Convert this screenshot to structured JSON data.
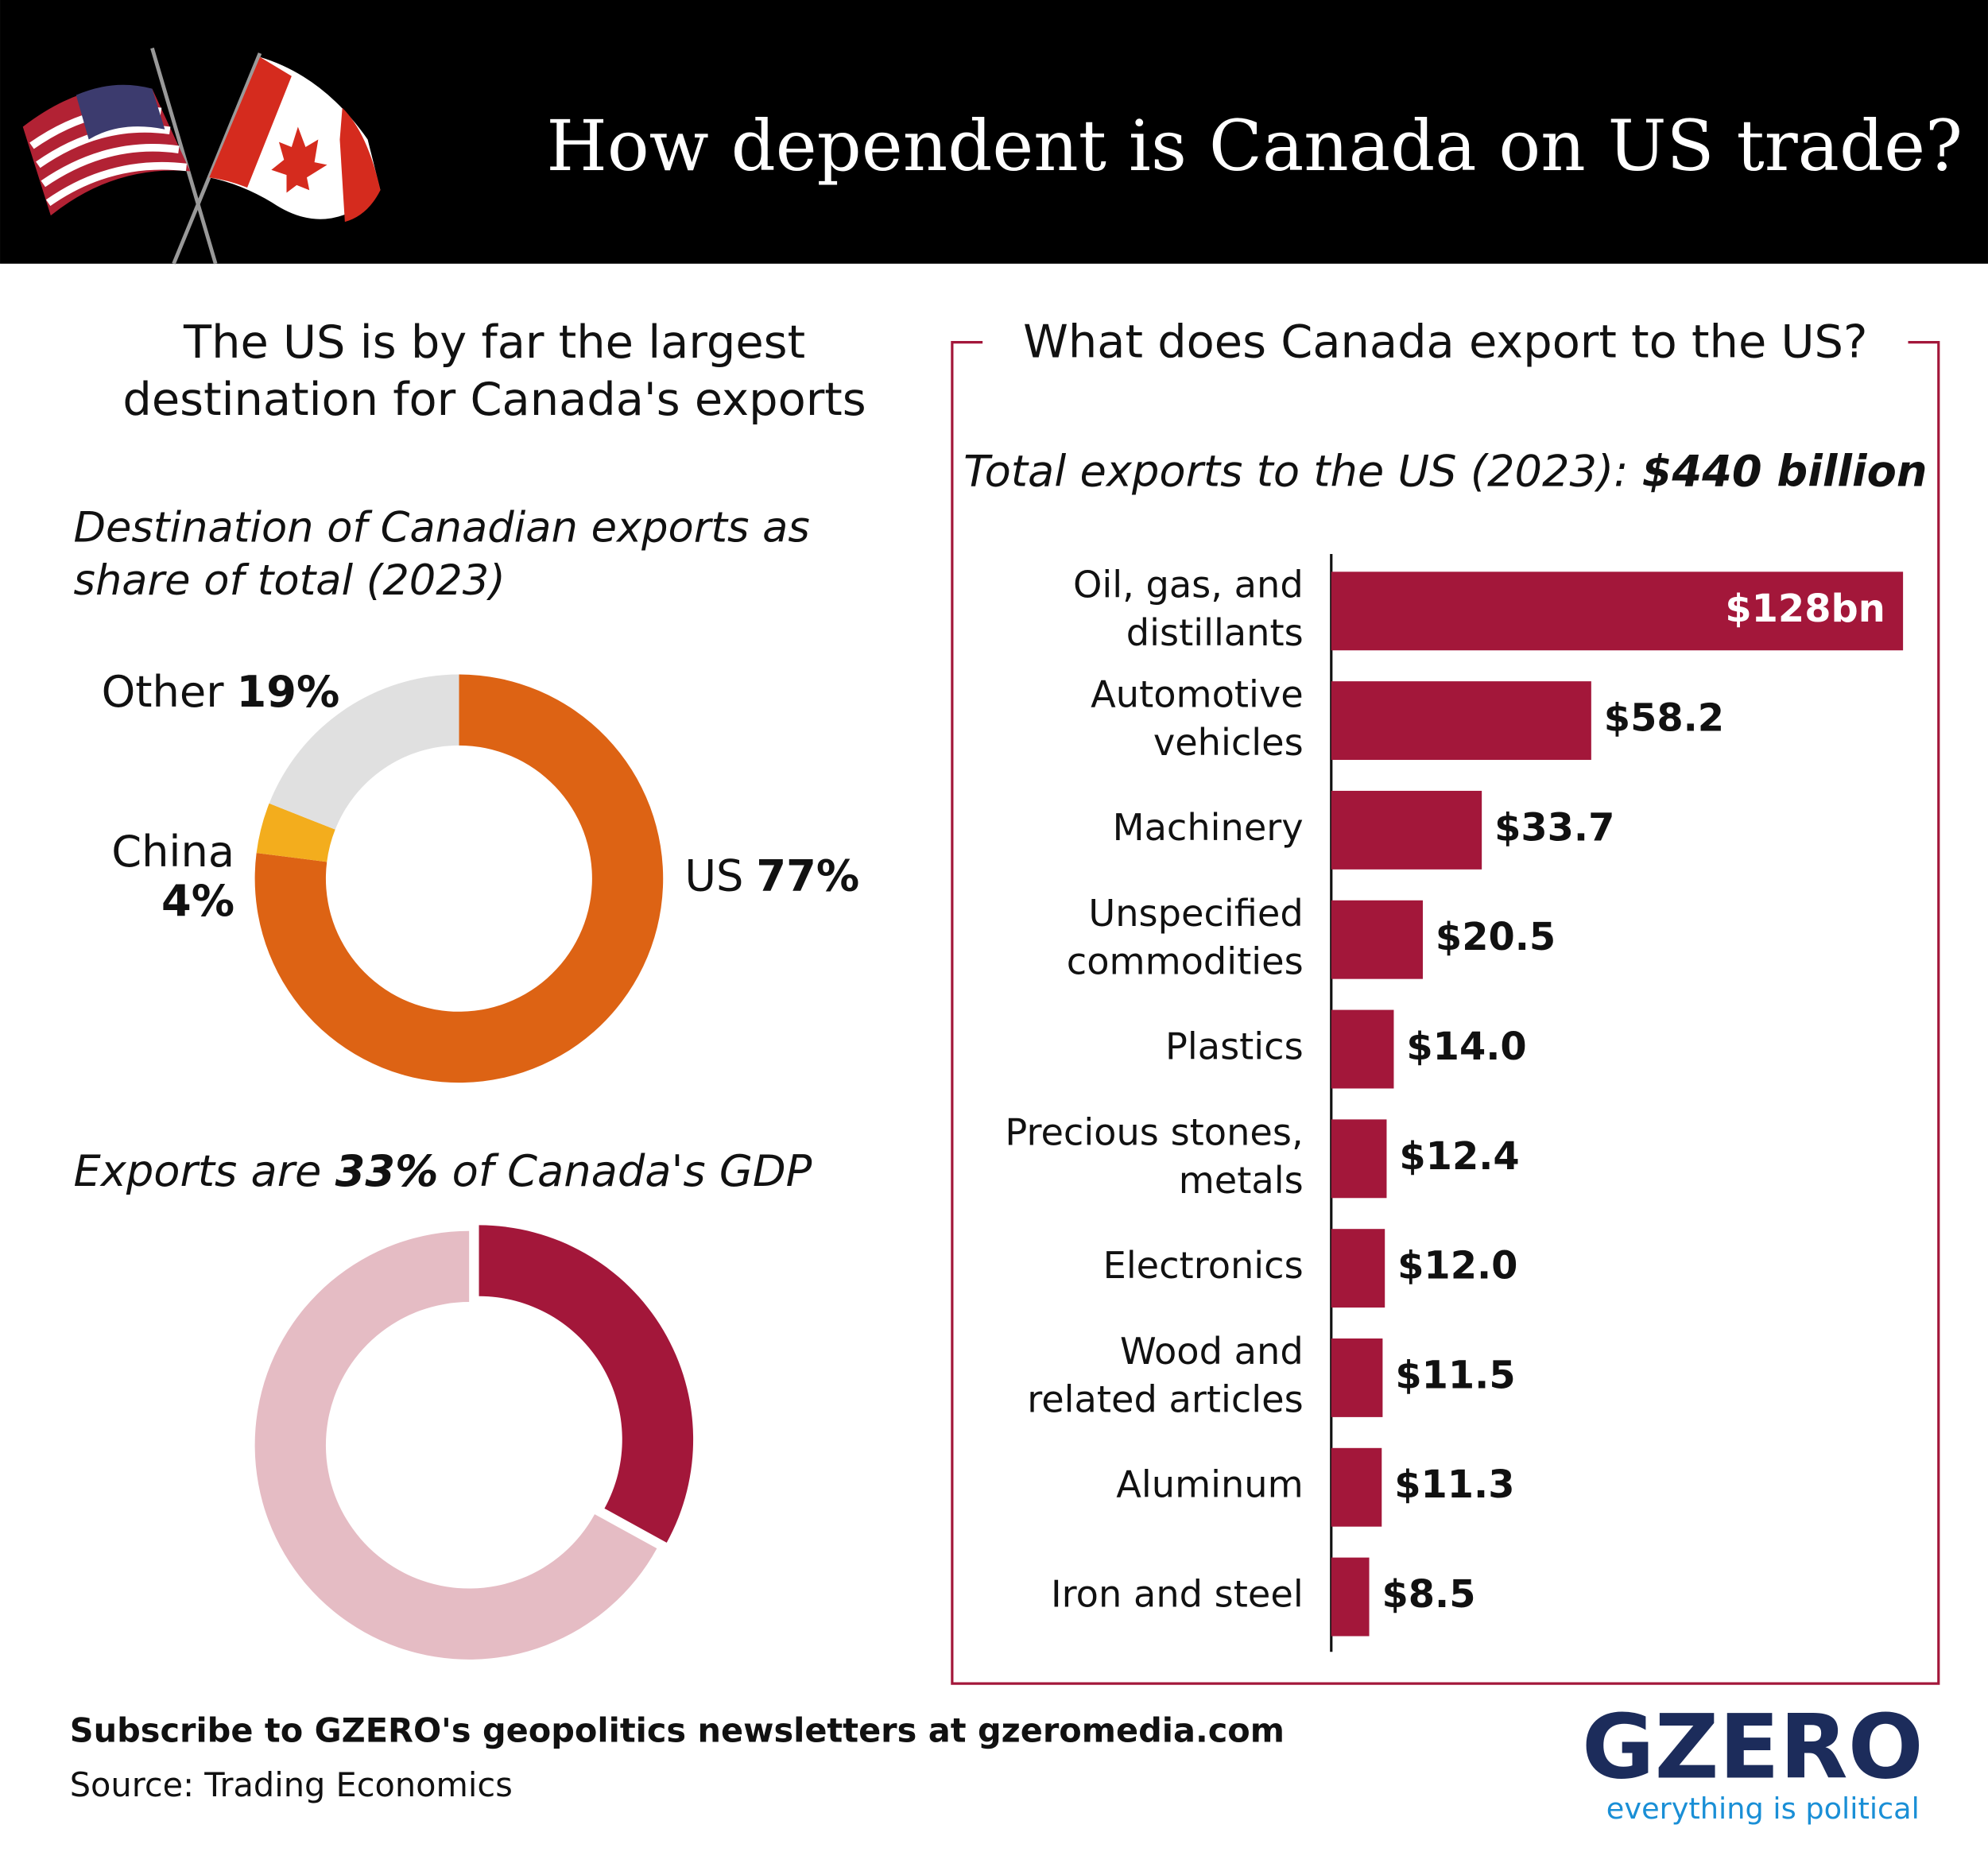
{
  "title": "How dependent is Canada on US trade?",
  "chart_data": [
    {
      "type": "donut",
      "title": "The US is by far the largest\ndestination for Canada's exports",
      "subtitle": "Destination of Canadian exports as\nshare of total (2023)",
      "categories": [
        "US",
        "China",
        "Other"
      ],
      "values": [
        77,
        4,
        19
      ],
      "value_labels": [
        "77%",
        "4%",
        "19%"
      ],
      "colors": [
        "#dd6314",
        "#f3ad1d",
        "#e0e0e0"
      ]
    },
    {
      "type": "donut",
      "title_before": "Exports are",
      "title_after": "of Canada's GDP",
      "categories": [
        null,
        null
      ],
      "values": [
        33,
        67
      ],
      "value_labels": [
        "33%",
        null
      ],
      "colors": [
        "#a3173a",
        "#e5bcc4"
      ],
      "explode": [
        true,
        false
      ]
    },
    {
      "type": "hbar",
      "title": "What does Canada export to the US?",
      "total_label": "Total exports to the US (2023):",
      "total_value": 440,
      "total_value_label": "$440 billion",
      "categories": [
        "Oil, gas, and\ndistillants",
        "Automotive\nvehicles",
        "Machinery",
        "Unspecified\ncommodities",
        "Plastics",
        "Precious stones,\nmetals",
        "Electronics",
        "Wood and\nrelated articles",
        "Aluminum",
        "Iron and steel"
      ],
      "values": [
        128,
        58.2,
        33.7,
        20.5,
        14.0,
        12.4,
        12.0,
        11.5,
        11.3,
        8.5
      ],
      "value_labels": [
        "$128bn",
        "$58.2",
        "$33.7",
        "$20.5",
        "$14.0",
        "$12.4",
        "$12.0",
        "$11.5",
        "$11.3",
        "$8.5"
      ],
      "color": "#a3173a"
    }
  ],
  "footer": {
    "subscribe": "Subscribe to GZERO's geopolitics newsletters at gzeromedia.com",
    "source": "Source: Trading Economics",
    "logo": "GZERO",
    "tagline": "everything is political"
  }
}
